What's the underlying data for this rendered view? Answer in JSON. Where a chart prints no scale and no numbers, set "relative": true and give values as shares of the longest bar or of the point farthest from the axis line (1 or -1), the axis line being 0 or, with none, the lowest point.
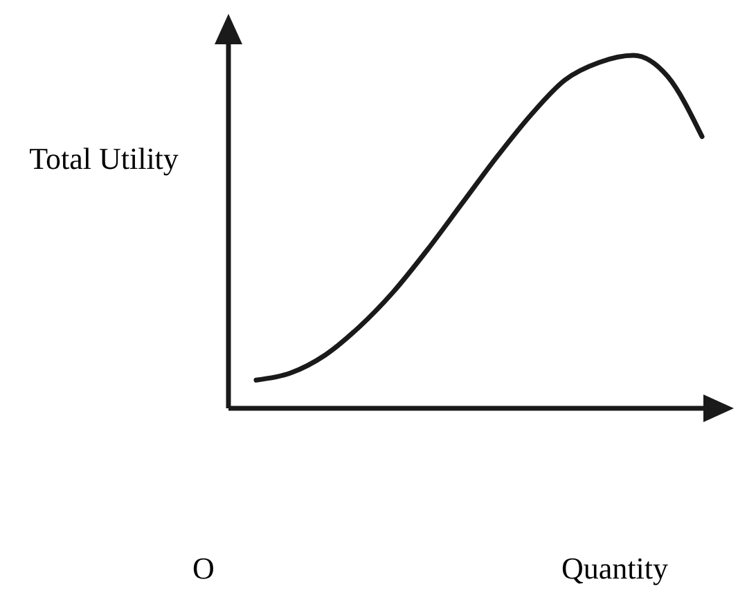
{
  "chart_data": {
    "type": "line",
    "relative": true,
    "ylabel": "Total Utility",
    "xlabel": "Quantity",
    "annotations": [
      "O"
    ],
    "categories": [
      null,
      null,
      null,
      null,
      null,
      null,
      null,
      null,
      null,
      null,
      null,
      null,
      null,
      null
    ],
    "series": [
      {
        "color": "#1a1a1a",
        "values": [
          0.08,
          0.1,
          0.15,
          0.23,
          0.33,
          0.45,
          0.58,
          0.71,
          0.83,
          0.93,
          0.98,
          1,
          0.94,
          0.77
        ]
      }
    ],
    "marker": "none",
    "line_style": "solid"
  }
}
